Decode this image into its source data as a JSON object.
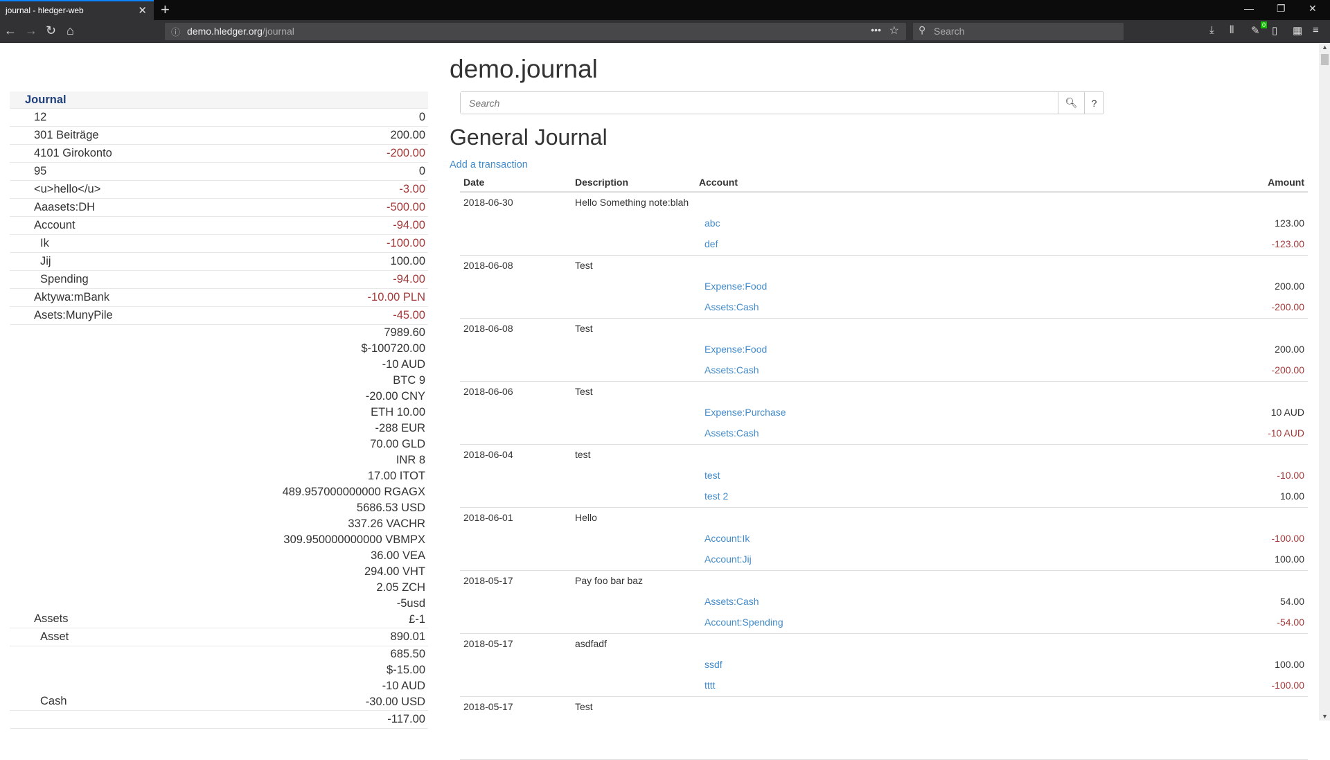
{
  "browser": {
    "tab_title": "journal - hledger-web",
    "url_host": "demo.hledger.org",
    "url_path": "/journal",
    "search_placeholder": "Search",
    "badge": "0"
  },
  "sidebar": {
    "title": "Journal",
    "rows": [
      {
        "name": "12",
        "amounts": [
          {
            "v": "0",
            "neg": false
          }
        ]
      },
      {
        "name": "301 Beiträge",
        "amounts": [
          {
            "v": "200.00",
            "neg": false
          }
        ]
      },
      {
        "name": "4101 Girokonto",
        "amounts": [
          {
            "v": "-200.00",
            "neg": true
          }
        ]
      },
      {
        "name": "95",
        "amounts": [
          {
            "v": "0",
            "neg": false
          }
        ]
      },
      {
        "name": "<u>hello</u>",
        "amounts": [
          {
            "v": "-3.00",
            "neg": true
          }
        ]
      },
      {
        "name": "Aaasets:DH",
        "amounts": [
          {
            "v": "-500.00",
            "neg": true
          }
        ]
      },
      {
        "name": "Account",
        "amounts": [
          {
            "v": "-94.00",
            "neg": true
          }
        ]
      },
      {
        "name": "Ik",
        "depth": 1,
        "amounts": [
          {
            "v": "-100.00",
            "neg": true
          }
        ]
      },
      {
        "name": "Jij",
        "depth": 1,
        "amounts": [
          {
            "v": "100.00",
            "neg": false
          }
        ]
      },
      {
        "name": "Spending",
        "depth": 1,
        "amounts": [
          {
            "v": "-94.00",
            "neg": true
          }
        ]
      },
      {
        "name": "Aktywa:mBank",
        "amounts": [
          {
            "v": "-10.00 PLN",
            "neg": true
          }
        ]
      },
      {
        "name": "Asets:MunyPile",
        "amounts": [
          {
            "v": "-45.00",
            "neg": true
          }
        ]
      },
      {
        "name": "Assets",
        "amounts": [
          {
            "v": "7989.60"
          },
          {
            "v": "$-100720.00"
          },
          {
            "v": "-10 AUD"
          },
          {
            "v": "BTC 9"
          },
          {
            "v": "-20.00 CNY"
          },
          {
            "v": "ETH 10.00"
          },
          {
            "v": "-288 EUR"
          },
          {
            "v": "70.00 GLD"
          },
          {
            "v": "INR 8"
          },
          {
            "v": "17.00 ITOT"
          },
          {
            "v": "489.957000000000 RGAGX"
          },
          {
            "v": "5686.53 USD"
          },
          {
            "v": "337.26 VACHR"
          },
          {
            "v": "309.950000000000 VBMPX"
          },
          {
            "v": "36.00 VEA"
          },
          {
            "v": "294.00 VHT"
          },
          {
            "v": "2.05 ZCH"
          },
          {
            "v": "-5usd"
          },
          {
            "v": "£-1"
          }
        ]
      },
      {
        "name": "Asset",
        "depth": 1,
        "amounts": [
          {
            "v": "890.01"
          }
        ]
      },
      {
        "name": "Cash",
        "depth": 1,
        "amounts": [
          {
            "v": "685.50"
          },
          {
            "v": "$-15.00"
          },
          {
            "v": "-10 AUD"
          },
          {
            "v": "-30.00 USD"
          }
        ]
      },
      {
        "name": "",
        "amounts": [
          {
            "v": "-117.00"
          }
        ]
      }
    ]
  },
  "main": {
    "title": "demo.journal",
    "search_placeholder": "Search",
    "help_label": "?",
    "heading": "General Journal",
    "add_link": "Add a transaction",
    "columns": [
      "Date",
      "Description",
      "Account",
      "Amount"
    ],
    "transactions": [
      {
        "date": "2018-06-30",
        "desc": "Hello Something note:blah",
        "postings": [
          {
            "account": "abc",
            "amount": "123.00",
            "neg": false
          },
          {
            "account": "def",
            "amount": "-123.00",
            "neg": true
          }
        ]
      },
      {
        "date": "2018-06-08",
        "desc": "Test",
        "postings": [
          {
            "account": "Expense:Food",
            "amount": "200.00",
            "neg": false
          },
          {
            "account": "Assets:Cash",
            "amount": "-200.00",
            "neg": true
          }
        ]
      },
      {
        "date": "2018-06-08",
        "desc": "Test",
        "postings": [
          {
            "account": "Expense:Food",
            "amount": "200.00",
            "neg": false
          },
          {
            "account": "Assets:Cash",
            "amount": "-200.00",
            "neg": true
          }
        ]
      },
      {
        "date": "2018-06-06",
        "desc": "Test",
        "postings": [
          {
            "account": "Expense:Purchase",
            "amount": "10 AUD",
            "neg": false
          },
          {
            "account": "Assets:Cash",
            "amount": "-10 AUD",
            "neg": true
          }
        ]
      },
      {
        "date": "2018-06-04",
        "desc": "test",
        "postings": [
          {
            "account": "test",
            "amount": "-10.00",
            "neg": true
          },
          {
            "account": "test 2",
            "amount": "10.00",
            "neg": false
          }
        ]
      },
      {
        "date": "2018-06-01",
        "desc": "Hello",
        "postings": [
          {
            "account": "Account:Ik",
            "amount": "-100.00",
            "neg": true
          },
          {
            "account": "Account:Jij",
            "amount": "100.00",
            "neg": false
          }
        ]
      },
      {
        "date": "2018-05-17",
        "desc": "Pay foo bar baz",
        "postings": [
          {
            "account": "Assets:Cash",
            "amount": "54.00",
            "neg": false
          },
          {
            "account": "Account:Spending",
            "amount": "-54.00",
            "neg": true
          }
        ]
      },
      {
        "date": "2018-05-17",
        "desc": "asdfadf",
        "postings": [
          {
            "account": "ssdf",
            "amount": "100.00",
            "neg": false
          },
          {
            "account": "tttt",
            "amount": "-100.00",
            "neg": true
          }
        ]
      },
      {
        "date": "2018-05-17",
        "desc": "Test",
        "postings": []
      }
    ]
  },
  "colors": {
    "link": "#428bca",
    "negative": "#a33a3a",
    "sidebar_title": "#1f3f7a",
    "tab_accent": "#0a84ff"
  }
}
